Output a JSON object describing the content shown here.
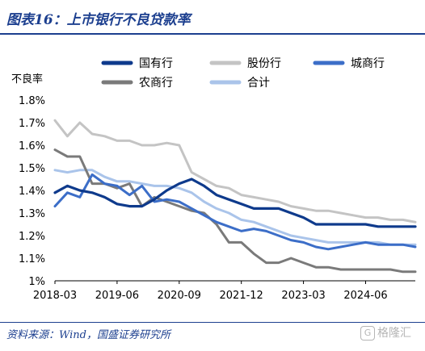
{
  "header": {
    "title": "图表16：上市银行不良贷款率"
  },
  "footer": {
    "source": "资料来源：Wind，国盛证券研究所",
    "watermark": "格隆汇",
    "watermark_badge": "G"
  },
  "chart_data": {
    "type": "line",
    "title": "图表16：上市银行不良贷款率",
    "ylabel": "不良率",
    "xlabel": "",
    "ylim": [
      1.0,
      1.8
    ],
    "yticks": [
      1.0,
      1.1,
      1.2,
      1.3,
      1.4,
      1.5,
      1.6,
      1.7,
      1.8
    ],
    "ytick_labels": [
      "1%",
      "1.1%",
      "1.2%",
      "1.3%",
      "1.4%",
      "1.5%",
      "1.6%",
      "1.7%",
      "1.8%"
    ],
    "xlim": [
      "2018-03",
      "2025-06"
    ],
    "xtick_labels": [
      "2018-03",
      "2019-06",
      "2020-09",
      "2021-12",
      "2023-03",
      "2024-06"
    ],
    "x": [
      "2018-03",
      "2018-06",
      "2018-09",
      "2018-12",
      "2019-03",
      "2019-06",
      "2019-09",
      "2019-12",
      "2020-03",
      "2020-06",
      "2020-09",
      "2020-12",
      "2021-03",
      "2021-06",
      "2021-09",
      "2021-12",
      "2022-03",
      "2022-06",
      "2022-09",
      "2022-12",
      "2023-03",
      "2023-06",
      "2023-09",
      "2023-12",
      "2024-03",
      "2024-06",
      "2024-09",
      "2024-12",
      "2025-03",
      "2025-06"
    ],
    "grid": false,
    "legend_position": "top",
    "series": [
      {
        "name": "国有行",
        "color": "#0e3a8c",
        "width": 3.2,
        "values": [
          1.39,
          1.42,
          1.4,
          1.39,
          1.37,
          1.34,
          1.33,
          1.33,
          1.36,
          1.4,
          1.43,
          1.45,
          1.42,
          1.38,
          1.36,
          1.34,
          1.32,
          1.32,
          1.32,
          1.3,
          1.28,
          1.25,
          1.25,
          1.25,
          1.25,
          1.25,
          1.24,
          1.24,
          1.24,
          1.24
        ]
      },
      {
        "name": "股份行",
        "color": "#c4c4c4",
        "width": 3.0,
        "values": [
          1.71,
          1.64,
          1.7,
          1.65,
          1.64,
          1.62,
          1.62,
          1.6,
          1.6,
          1.61,
          1.6,
          1.48,
          1.45,
          1.42,
          1.41,
          1.38,
          1.37,
          1.36,
          1.35,
          1.33,
          1.32,
          1.31,
          1.31,
          1.3,
          1.29,
          1.28,
          1.28,
          1.27,
          1.27,
          1.26
        ]
      },
      {
        "name": "城商行",
        "color": "#3c6ec8",
        "width": 3.0,
        "values": [
          1.33,
          1.39,
          1.37,
          1.47,
          1.43,
          1.42,
          1.38,
          1.42,
          1.35,
          1.36,
          1.35,
          1.32,
          1.29,
          1.26,
          1.24,
          1.22,
          1.23,
          1.22,
          1.2,
          1.18,
          1.17,
          1.15,
          1.14,
          1.15,
          1.16,
          1.17,
          1.16,
          1.16,
          1.16,
          1.15
        ]
      },
      {
        "name": "农商行",
        "color": "#7a7a7a",
        "width": 3.0,
        "values": [
          1.58,
          1.55,
          1.55,
          1.43,
          1.43,
          1.41,
          1.43,
          1.33,
          1.37,
          1.35,
          1.33,
          1.31,
          1.3,
          1.25,
          1.17,
          1.17,
          1.12,
          1.08,
          1.08,
          1.1,
          1.08,
          1.06,
          1.06,
          1.05,
          1.05,
          1.05,
          1.05,
          1.05,
          1.04,
          1.04
        ]
      },
      {
        "name": "合计",
        "color": "#aac4ea",
        "width": 3.0,
        "values": [
          1.49,
          1.48,
          1.49,
          1.49,
          1.46,
          1.44,
          1.44,
          1.43,
          1.42,
          1.42,
          1.41,
          1.39,
          1.35,
          1.32,
          1.3,
          1.27,
          1.26,
          1.24,
          1.22,
          1.2,
          1.19,
          1.18,
          1.17,
          1.17,
          1.17,
          1.17,
          1.17,
          1.16,
          1.16,
          1.16
        ]
      }
    ]
  }
}
